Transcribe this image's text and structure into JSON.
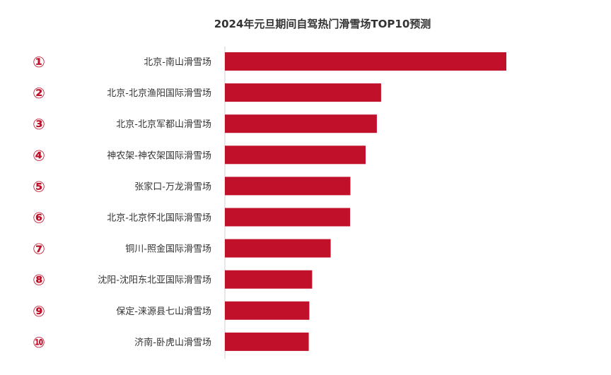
{
  "chart_data": {
    "type": "bar",
    "orientation": "horizontal",
    "title": "2024年元旦期间自驾热门滑雪场TOP10预测",
    "xlabel": "",
    "ylabel": "",
    "rank_labels": [
      "①",
      "②",
      "③",
      "④",
      "⑤",
      "⑥",
      "⑦",
      "⑧",
      "⑨",
      "⑩"
    ],
    "categories": [
      "北京-南山滑雪场",
      "北京-北京渔阳国际滑雪场",
      "北京-北京军都山滑雪场",
      "神农架-神农架国际滑雪场",
      "张家口-万龙滑雪场",
      "北京-北京怀北国际滑雪场",
      "铜川-照金国际滑雪场",
      "沈阳-沈阳东北亚国际滑雪场",
      "保定-涞源县七山滑雪场",
      "济南-卧虎山滑雪场"
    ],
    "values": [
      100,
      55.5,
      54,
      50,
      44.6,
      44.5,
      37.6,
      31,
      30,
      29.8
    ],
    "xlim": [
      0,
      100
    ],
    "bar_color": "#c0102a",
    "rank_color": "#c0102a",
    "axis_color": "#d0d0d0",
    "grid": false,
    "legend": "none"
  }
}
